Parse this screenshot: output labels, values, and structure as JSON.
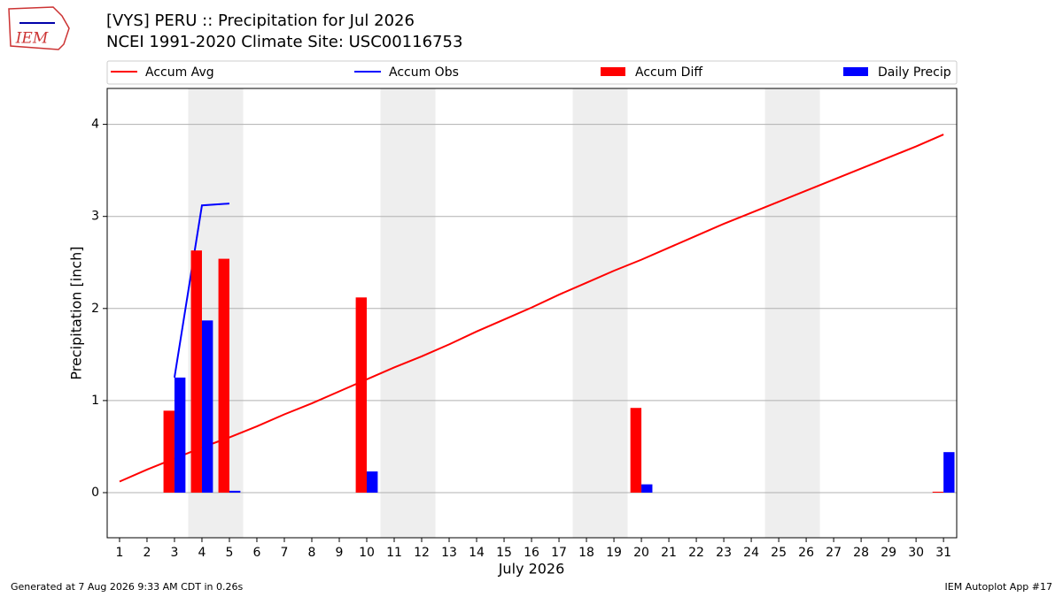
{
  "chart_data": {
    "type": "bar_line",
    "logo_text": "IEM",
    "title": "[VYS] PERU :: Precipitation for Jul 2026",
    "subtitle": "NCEI 1991-2020 Climate Site: USC00116753",
    "x_label": "July 2026",
    "y_label": "Precipitation [inch]",
    "footer_left": "Generated at 7 Aug 2026 9:33 AM CDT in 0.26s",
    "footer_right": "IEM Autoplot App #17",
    "x": [
      1,
      2,
      3,
      4,
      5,
      6,
      7,
      8,
      9,
      10,
      11,
      12,
      13,
      14,
      15,
      16,
      17,
      18,
      19,
      20,
      21,
      22,
      23,
      24,
      25,
      26,
      27,
      28,
      29,
      30,
      31
    ],
    "xlim": [
      0.55,
      31.48
    ],
    "xticks": [
      1,
      2,
      3,
      4,
      5,
      6,
      7,
      8,
      9,
      10,
      11,
      12,
      13,
      14,
      15,
      16,
      17,
      18,
      19,
      20,
      21,
      22,
      23,
      24,
      25,
      26,
      27,
      28,
      29,
      30,
      31
    ],
    "ylim": [
      -0.49,
      4.39
    ],
    "yticks": [
      0,
      1,
      2,
      3,
      4
    ],
    "grid": true,
    "shaded_spans": [
      [
        3.5,
        5.5
      ],
      [
        10.5,
        12.5
      ],
      [
        17.5,
        19.5
      ],
      [
        24.5,
        26.5
      ]
    ],
    "series": [
      {
        "name": "Accum Avg",
        "kind": "line",
        "color": "#ff0000",
        "values": [
          0.12,
          0.25,
          0.37,
          0.49,
          0.6,
          0.72,
          0.85,
          0.97,
          1.1,
          1.23,
          1.36,
          1.48,
          1.61,
          1.75,
          1.88,
          2.01,
          2.15,
          2.28,
          2.41,
          2.53,
          2.66,
          2.79,
          2.92,
          3.04,
          3.16,
          3.28,
          3.4,
          3.52,
          3.64,
          3.76,
          3.89
        ]
      },
      {
        "name": "Accum Obs",
        "kind": "line",
        "color": "#0000ff",
        "values": [
          null,
          null,
          1.25,
          3.12,
          3.14,
          null,
          null,
          null,
          null,
          null,
          null,
          null,
          null,
          null,
          null,
          null,
          null,
          null,
          null,
          null,
          null,
          null,
          null,
          null,
          null,
          null,
          null,
          null,
          null,
          null,
          null
        ]
      },
      {
        "name": "Accum Diff",
        "kind": "bar",
        "offset": -0.2,
        "color": "#ff0000",
        "values": [
          null,
          null,
          0.89,
          2.63,
          2.54,
          null,
          null,
          null,
          null,
          2.12,
          null,
          null,
          null,
          null,
          null,
          null,
          null,
          null,
          null,
          0.92,
          null,
          null,
          null,
          null,
          null,
          null,
          null,
          null,
          null,
          null,
          0.01
        ]
      },
      {
        "name": "Daily Precip",
        "kind": "bar",
        "offset": 0.2,
        "color": "#0000ff",
        "values": [
          null,
          null,
          1.25,
          1.87,
          0.02,
          null,
          null,
          null,
          null,
          0.23,
          null,
          null,
          null,
          null,
          null,
          null,
          null,
          null,
          null,
          0.09,
          null,
          null,
          null,
          null,
          null,
          null,
          null,
          null,
          null,
          null,
          0.44
        ]
      }
    ]
  }
}
